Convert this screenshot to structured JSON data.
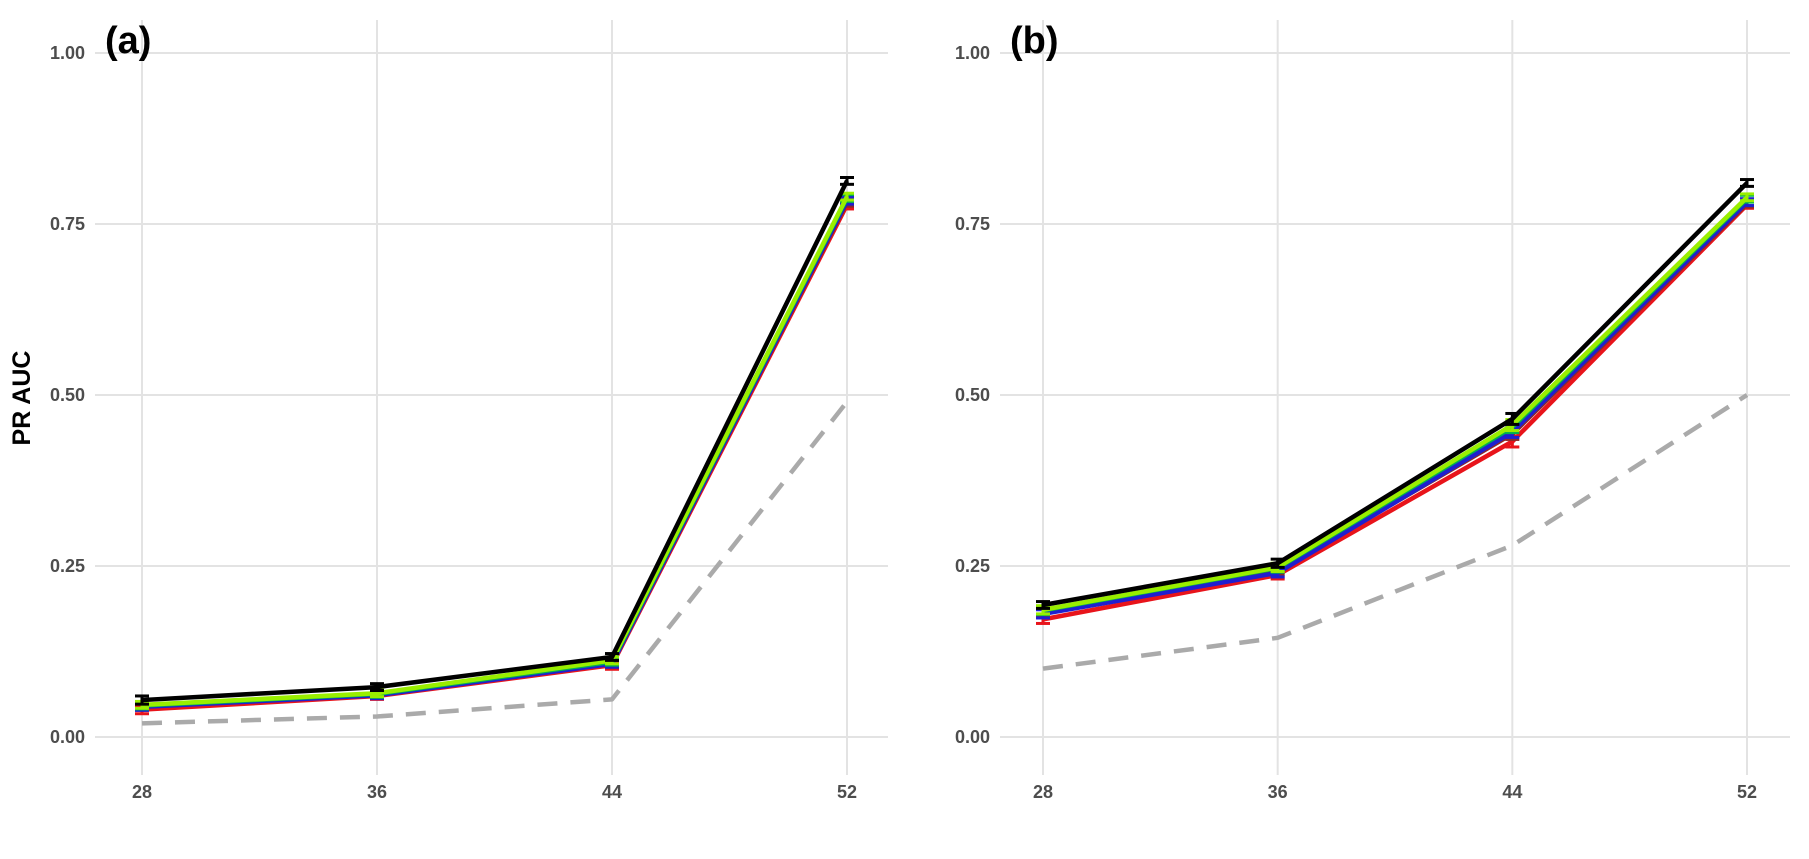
{
  "ylabel": "PR AUC",
  "chart_data": [
    {
      "type": "line",
      "panel_label": "(a)",
      "x": [
        28,
        36,
        44,
        52
      ],
      "xticks": [
        "28",
        "36",
        "44",
        "52"
      ],
      "ylim": [
        0,
        1
      ],
      "yticks": [
        "0.00",
        "0.25",
        "0.50",
        "0.75",
        "1.00"
      ],
      "ylabel": "PR AUC",
      "grid": true,
      "series": [
        {
          "color": "#aaaaaa",
          "dashed": true,
          "values": [
            0.02,
            0.03,
            0.055,
            0.49
          ]
        },
        {
          "color": "#e8141b",
          "values": [
            0.04,
            0.06,
            0.105,
            0.778
          ],
          "err": [
            0.006,
            0.005,
            0.006,
            0.006
          ]
        },
        {
          "color": "#8b2a2a",
          "values": [
            0.045,
            0.062,
            0.108,
            0.782
          ],
          "err": [
            0.006,
            0.005,
            0.006,
            0.006
          ]
        },
        {
          "color": "#1f1fd0",
          "values": [
            0.044,
            0.061,
            0.107,
            0.784
          ],
          "err": [
            0.005,
            0.005,
            0.005,
            0.005
          ]
        },
        {
          "color": "#00b050",
          "values": [
            0.046,
            0.063,
            0.11,
            0.788
          ],
          "err": [
            0.005,
            0.005,
            0.005,
            0.005
          ]
        },
        {
          "color": "#99ee00",
          "values": [
            0.047,
            0.064,
            0.112,
            0.79
          ],
          "err": [
            0.005,
            0.005,
            0.005,
            0.005
          ]
        },
        {
          "color": "#000000",
          "values": [
            0.054,
            0.073,
            0.117,
            0.813
          ],
          "err": [
            0.006,
            0.005,
            0.005,
            0.005
          ]
        }
      ]
    },
    {
      "type": "line",
      "panel_label": "(b)",
      "x": [
        28,
        36,
        44,
        52
      ],
      "xticks": [
        "28",
        "36",
        "44",
        "52"
      ],
      "ylim": [
        0,
        1
      ],
      "yticks": [
        "0.00",
        "0.25",
        "0.50",
        "0.75",
        "1.00"
      ],
      "grid": true,
      "series": [
        {
          "color": "#aaaaaa",
          "dashed": true,
          "values": [
            0.1,
            0.145,
            0.28,
            0.5
          ]
        },
        {
          "color": "#e8141b",
          "values": [
            0.172,
            0.237,
            0.432,
            0.778
          ],
          "err": [
            0.006,
            0.006,
            0.008,
            0.005
          ]
        },
        {
          "color": "#8b2a2a",
          "values": [
            0.182,
            0.243,
            0.443,
            0.78
          ],
          "err": [
            0.006,
            0.006,
            0.008,
            0.005
          ]
        },
        {
          "color": "#1f1fd0",
          "values": [
            0.18,
            0.24,
            0.446,
            0.782
          ],
          "err": [
            0.006,
            0.006,
            0.008,
            0.005
          ]
        },
        {
          "color": "#00b050",
          "values": [
            0.185,
            0.247,
            0.453,
            0.787
          ],
          "err": [
            0.006,
            0.006,
            0.008,
            0.005
          ]
        },
        {
          "color": "#99ee00",
          "values": [
            0.186,
            0.248,
            0.456,
            0.789
          ],
          "err": [
            0.006,
            0.006,
            0.008,
            0.005
          ]
        },
        {
          "color": "#000000",
          "values": [
            0.193,
            0.254,
            0.465,
            0.81
          ],
          "err": [
            0.005,
            0.006,
            0.008,
            0.005
          ]
        }
      ]
    }
  ]
}
